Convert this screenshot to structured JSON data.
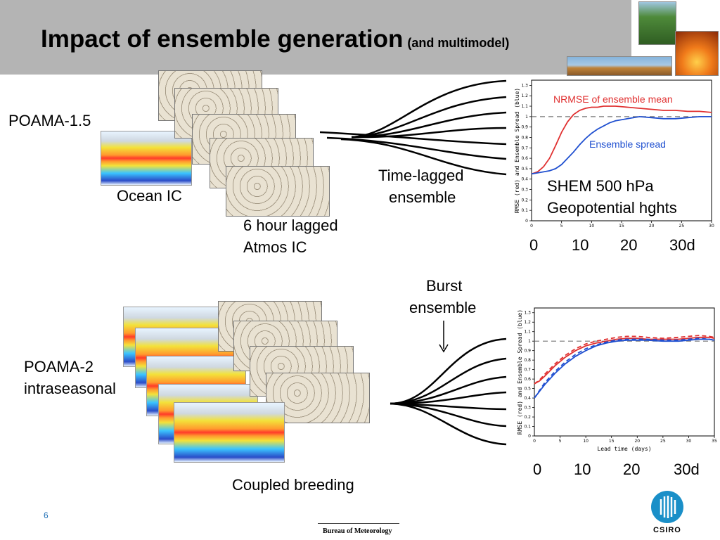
{
  "title": {
    "main": "Impact of ensemble generation",
    "sub": "(and multimodel)"
  },
  "labels": {
    "poama15": "POAMA-1.5",
    "ocean_ic": "Ocean IC",
    "lagged_line1": "6 hour lagged",
    "lagged_line2": "Atmos IC",
    "time_lagged_line1": "Time-lagged",
    "time_lagged_line2": "ensemble",
    "burst_line1": "Burst",
    "burst_line2": "ensemble",
    "poama2_line1": "POAMA-2",
    "poama2_line2": "intraseasonal",
    "coupled_breeding": "Coupled breeding",
    "shem_line1": "SHEM 500 hPa",
    "shem_line2": "Geopotential hghts"
  },
  "lead_axis_top": [
    "0",
    "10",
    "20",
    "30d"
  ],
  "lead_axis_bottom": [
    "0",
    "10",
    "20",
    "30d"
  ],
  "footer": {
    "page_number": "6",
    "agency": "Bureau of Meteorology",
    "csiro": "CSIRO"
  },
  "colors": {
    "title_bar": "#b4b4b4",
    "red": "#e03030",
    "blue": "#2050d0",
    "page_number": "#1f6fb5",
    "csiro": "#1a8fc8"
  },
  "chart_data": [
    {
      "type": "line",
      "ylabel": "RMSE (red) and Ensemble Spread (blue)",
      "xlabel": "",
      "ylim": [
        0,
        1.35
      ],
      "xlim": [
        0,
        30
      ],
      "yticks": [
        0,
        0.1,
        0.2,
        0.3,
        0.4,
        0.5,
        0.6,
        0.7,
        0.8,
        0.9,
        1,
        1.1,
        1.2,
        1.3
      ],
      "xticks": [
        5,
        10,
        15,
        20,
        25,
        30
      ],
      "reference_line": 1.0,
      "series": [
        {
          "name": "NRMSE of ensemble mean",
          "color": "#e03030",
          "dash": false,
          "x": [
            0,
            1,
            2,
            3,
            4,
            5,
            6,
            7,
            8,
            9,
            10,
            11,
            12,
            13,
            14,
            16,
            18,
            20,
            22,
            24,
            26,
            28,
            30
          ],
          "y": [
            0.45,
            0.47,
            0.52,
            0.6,
            0.72,
            0.85,
            0.95,
            1.02,
            1.06,
            1.08,
            1.09,
            1.09,
            1.1,
            1.1,
            1.1,
            1.09,
            1.08,
            1.07,
            1.06,
            1.06,
            1.05,
            1.05,
            1.04
          ]
        },
        {
          "name": "Ensemble spread",
          "color": "#2050d0",
          "dash": false,
          "x": [
            0,
            1,
            2,
            3,
            4,
            5,
            6,
            7,
            8,
            9,
            10,
            11,
            12,
            13,
            14,
            16,
            18,
            20,
            22,
            24,
            26,
            28,
            30
          ],
          "y": [
            0.45,
            0.46,
            0.47,
            0.48,
            0.5,
            0.54,
            0.6,
            0.66,
            0.73,
            0.79,
            0.84,
            0.88,
            0.91,
            0.94,
            0.96,
            0.98,
            1.0,
            0.99,
            0.98,
            0.98,
            0.99,
            1.0,
            1.0
          ]
        }
      ]
    },
    {
      "type": "line",
      "ylabel": "RMSE (red) and Ensemble Spread (blue)",
      "xlabel": "Lead time (days)",
      "ylim": [
        0,
        1.35
      ],
      "xlim": [
        0,
        35
      ],
      "yticks": [
        0,
        0.1,
        0.2,
        0.3,
        0.4,
        0.5,
        0.6,
        0.7,
        0.8,
        0.9,
        1,
        1.1,
        1.2,
        1.3
      ],
      "xticks": [
        5,
        10,
        15,
        20,
        25,
        30,
        35
      ],
      "reference_line": 1.0,
      "series": [
        {
          "color": "#e03030",
          "dash": false,
          "x": [
            0,
            1,
            2,
            4,
            6,
            8,
            10,
            12,
            14,
            16,
            18,
            20,
            22,
            25,
            28,
            30,
            32,
            34,
            35
          ],
          "y": [
            0.55,
            0.58,
            0.63,
            0.74,
            0.83,
            0.9,
            0.95,
            0.98,
            1.0,
            1.02,
            1.03,
            1.03,
            1.02,
            1.02,
            1.02,
            1.03,
            1.04,
            1.04,
            1.03
          ]
        },
        {
          "color": "#e03030",
          "dash": true,
          "x": [
            0,
            1,
            2,
            4,
            6,
            8,
            10,
            12,
            14,
            16,
            18,
            20,
            22,
            25,
            28,
            30,
            32,
            34,
            35
          ],
          "y": [
            0.55,
            0.59,
            0.65,
            0.76,
            0.85,
            0.92,
            0.97,
            1.0,
            1.02,
            1.04,
            1.05,
            1.05,
            1.04,
            1.03,
            1.04,
            1.05,
            1.06,
            1.05,
            1.04
          ]
        },
        {
          "color": "#2050d0",
          "dash": false,
          "x": [
            0,
            1,
            2,
            4,
            6,
            8,
            10,
            12,
            14,
            16,
            18,
            20,
            22,
            25,
            28,
            30,
            32,
            34,
            35
          ],
          "y": [
            0.4,
            0.47,
            0.54,
            0.66,
            0.76,
            0.84,
            0.9,
            0.95,
            0.98,
            1.0,
            1.01,
            1.01,
            1.01,
            1.0,
            1.0,
            1.01,
            1.02,
            1.02,
            1.01
          ]
        },
        {
          "color": "#2050d0",
          "dash": true,
          "x": [
            0,
            1,
            2,
            4,
            6,
            8,
            10,
            12,
            14,
            16,
            18,
            20,
            22,
            25,
            28,
            30,
            32,
            34,
            35
          ],
          "y": [
            0.4,
            0.48,
            0.56,
            0.68,
            0.78,
            0.86,
            0.92,
            0.96,
            0.99,
            1.01,
            1.02,
            1.02,
            1.02,
            1.01,
            1.01,
            1.02,
            1.03,
            1.02,
            1.01
          ]
        }
      ]
    }
  ]
}
